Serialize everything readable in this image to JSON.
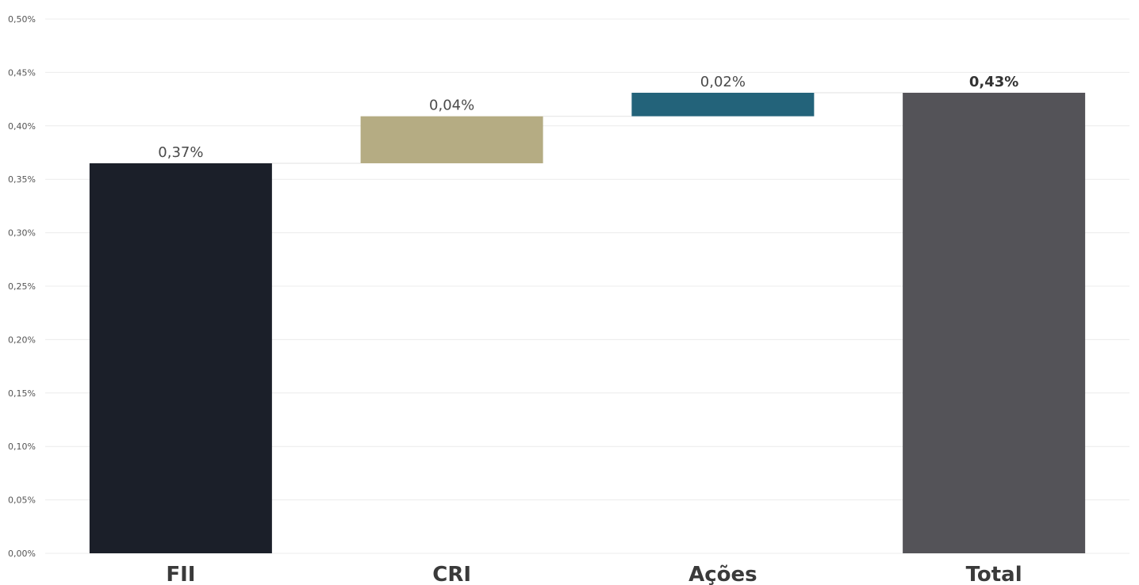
{
  "chart_data": {
    "type": "bar",
    "subtype": "waterfall",
    "title": "",
    "xlabel": "",
    "ylabel": "",
    "categories": [
      "FII",
      "CRI",
      "Ações",
      "Total"
    ],
    "values": [
      0.365,
      0.044,
      0.022,
      0.431
    ],
    "bases": [
      0,
      0.365,
      0.409,
      0
    ],
    "data_labels": [
      "0,37%",
      "0,04%",
      "0,02%",
      "0,43%"
    ],
    "data_label_bold": [
      false,
      false,
      false,
      true
    ],
    "colors": [
      "#1b1f29",
      "#b5ac83",
      "#23637a",
      "#545358"
    ],
    "ylim": [
      0,
      0.5
    ],
    "yticks": [
      0,
      0.05,
      0.1,
      0.15,
      0.2,
      0.25,
      0.3,
      0.35,
      0.4,
      0.45,
      0.5
    ],
    "ytick_labels": [
      "0,00%",
      "0,05%",
      "0,10%",
      "0,15%",
      "0,20%",
      "0,25%",
      "0,30%",
      "0,35%",
      "0,40%",
      "0,45%",
      "0,50%"
    ],
    "grid": true,
    "legend": "none"
  }
}
